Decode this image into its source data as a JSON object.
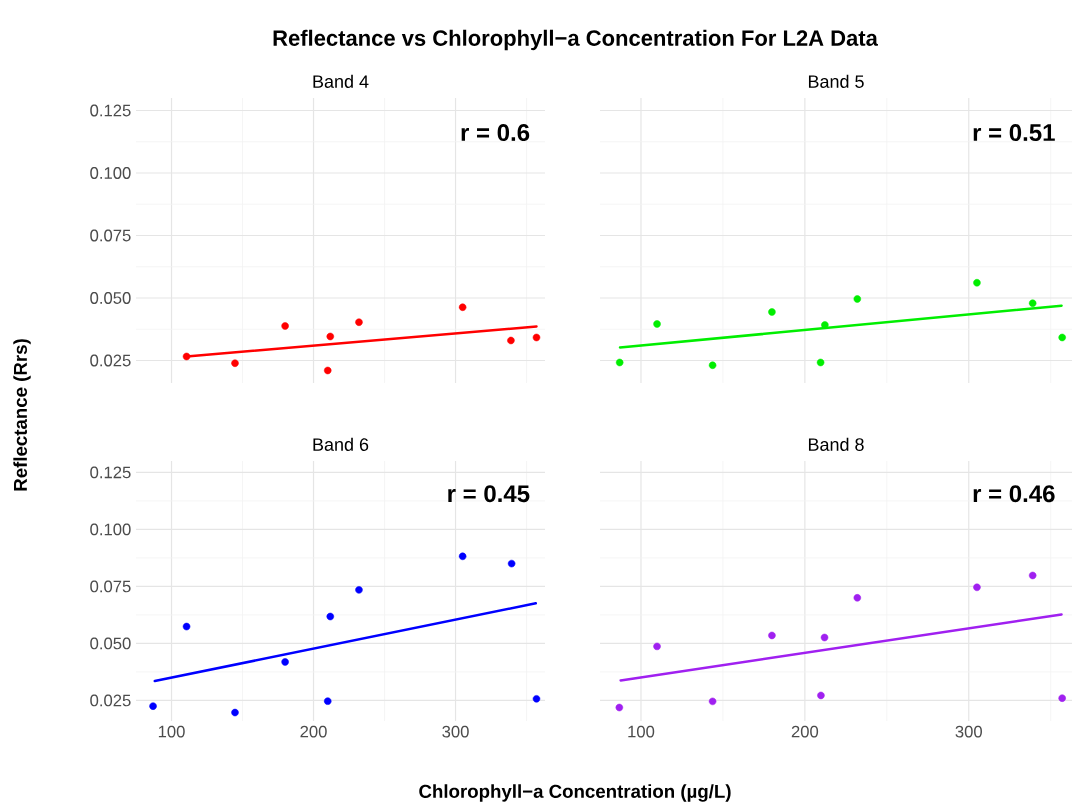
{
  "chart_data": [
    {
      "type": "scatter",
      "title": "Band 4",
      "ylabel": "Reflectance (Rrs)",
      "annotations": [
        "Reflectance vs Chlorophyll−a Concentration For L2A Data",
        "r = 0.6"
      ],
      "xlim": [
        75,
        363
      ],
      "ylim": [
        0.016,
        0.13
      ],
      "xticks": [
        100,
        200,
        300
      ],
      "yticks": [
        {
          "value": 0.025,
          "label": "0.025"
        },
        {
          "value": 0.05,
          "label": "0.050"
        },
        {
          "value": 0.075,
          "label": "0.075"
        },
        {
          "value": 0.1,
          "label": "0.100"
        },
        {
          "value": 0.125,
          "label": "0.125"
        }
      ],
      "tick_labels": "y",
      "grid": true,
      "series": [
        {
          "type": "scatter",
          "color": "#ff0000",
          "marker": "circle",
          "x": [
            110.6,
            144.7,
            180,
            210,
            211.8,
            232,
            305,
            339,
            357
          ],
          "values": [
            0.0266,
            0.0239,
            0.0388,
            0.021,
            0.0346,
            0.0403,
            0.0463,
            0.033,
            0.0342
          ]
        },
        {
          "type": "line",
          "marker": "none",
          "color": "#ff0000",
          "x": [
            110.6,
            357
          ],
          "values": [
            0.0266,
            0.0386
          ]
        }
      ]
    },
    {
      "type": "scatter",
      "title": "Band 5",
      "annotations": [
        "r = 0.51"
      ],
      "xlim": [
        75,
        363
      ],
      "ylim": [
        0.016,
        0.13
      ],
      "xticks": [
        100,
        200,
        300
      ],
      "yticks": [
        0.025,
        0.05,
        0.075,
        0.1,
        0.125
      ],
      "tick_labels": false,
      "grid": true,
      "series": [
        {
          "type": "scatter",
          "color": "#00ee00",
          "marker": "circle",
          "x": [
            87,
            109.8,
            143.7,
            179.9,
            209.6,
            212.2,
            232,
            305,
            339,
            357
          ],
          "values": [
            0.0242,
            0.0396,
            0.0231,
            0.0444,
            0.0242,
            0.0392,
            0.0496,
            0.0561,
            0.0479,
            0.0342
          ]
        },
        {
          "type": "line",
          "marker": "none",
          "color": "#00ee00",
          "x": [
            87.2,
            356.6
          ],
          "values": [
            0.0302,
            0.0469
          ]
        }
      ]
    },
    {
      "type": "scatter",
      "title": "Band 6",
      "xlabel": "Chlorophyll−a Concentration (µg/L)",
      "annotations": [
        "r = 0.45"
      ],
      "xlim": [
        75,
        363
      ],
      "ylim": [
        0.016,
        0.13
      ],
      "xticks": [
        100,
        200,
        300
      ],
      "yticks": [
        {
          "value": 0.025,
          "label": "0.025"
        },
        {
          "value": 0.05,
          "label": "0.050"
        },
        {
          "value": 0.075,
          "label": "0.075"
        },
        {
          "value": 0.1,
          "label": "0.100"
        },
        {
          "value": 0.125,
          "label": "0.125"
        }
      ],
      "grid": true,
      "series": [
        {
          "type": "scatter",
          "color": "#0000ff",
          "marker": "circle",
          "x": [
            87,
            110.6,
            144.7,
            180,
            210,
            211.8,
            232,
            305,
            339.5,
            357
          ],
          "values": [
            0.0225,
            0.0574,
            0.0197,
            0.0419,
            0.0247,
            0.0618,
            0.0735,
            0.0882,
            0.085,
            0.0257
          ]
        },
        {
          "type": "line",
          "marker": "none",
          "color": "#0000ff",
          "x": [
            88.2,
            356.5
          ],
          "values": [
            0.0335,
            0.0676
          ]
        }
      ]
    },
    {
      "type": "scatter",
      "title": "Band 8",
      "annotations": [
        "r = 0.46"
      ],
      "xlim": [
        75,
        363
      ],
      "ylim": [
        0.016,
        0.13
      ],
      "xticks": [
        100,
        200,
        300
      ],
      "yticks": [
        0.025,
        0.05,
        0.075,
        0.1,
        0.125
      ],
      "tick_labels": "x",
      "grid": true,
      "series": [
        {
          "type": "scatter",
          "color": "#a020f0",
          "marker": "circle",
          "x": [
            86.8,
            109.8,
            143.7,
            179.9,
            209.8,
            212,
            232,
            305,
            339,
            357
          ],
          "values": [
            0.0219,
            0.0487,
            0.0246,
            0.0535,
            0.0272,
            0.0526,
            0.07,
            0.0746,
            0.0798,
            0.026
          ]
        },
        {
          "type": "line",
          "marker": "none",
          "color": "#a020f0",
          "x": [
            87.6,
            356.6
          ],
          "values": [
            0.0338,
            0.0627
          ]
        }
      ]
    }
  ]
}
